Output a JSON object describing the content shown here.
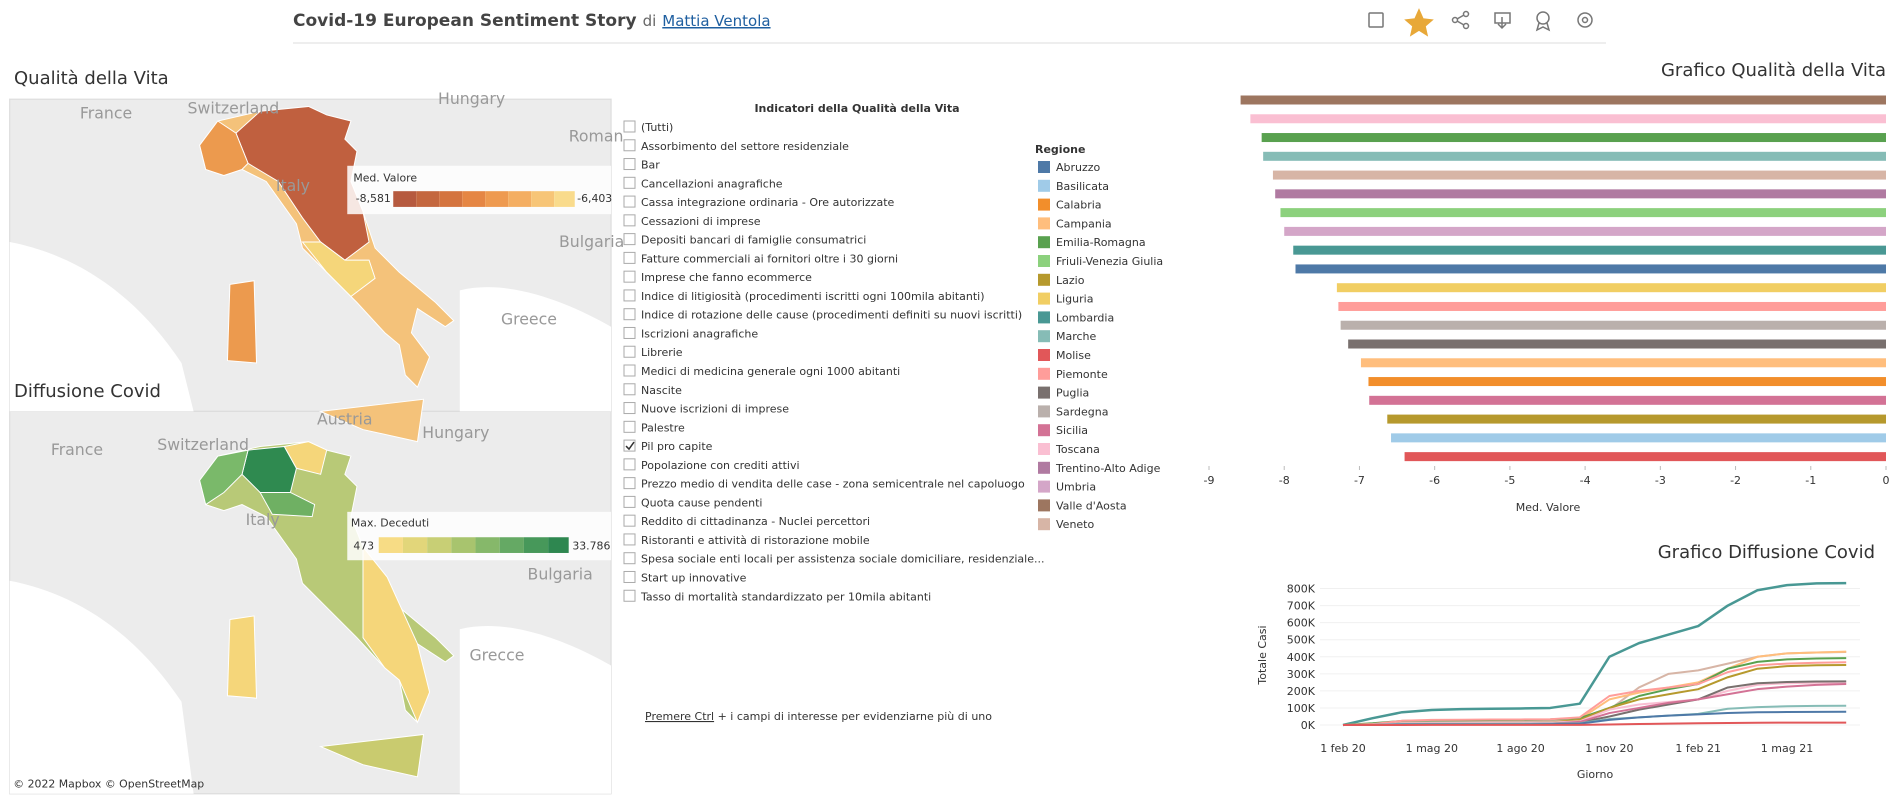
{
  "header": {
    "title": "Covid-19 European Sentiment Story",
    "by": "di",
    "author": "Mattia Ventola"
  },
  "quality_map": {
    "title": "Qualità della Vita",
    "legend_title": "Med. Valore",
    "legend_min": "-8,581",
    "legend_max": "-6,403",
    "places": [
      "France",
      "Switzerland",
      "Hungary",
      "Roman",
      "Italy",
      "Bulgaria",
      "Greece"
    ]
  },
  "covid_map": {
    "title": "Diffusione Covid",
    "legend_title": "Max. Deceduti",
    "legend_min": "473",
    "legend_max": "33.786",
    "places": [
      "France",
      "Switzerland",
      "Austria",
      "Hungary",
      "Italy",
      "Bulgaria",
      "Grecce"
    ]
  },
  "map_credit": "© 2022 Mapbox © OpenStreetMap",
  "filter": {
    "title": "Indicatori della Qualità della Vita",
    "items": [
      {
        "label": "(Tutti)",
        "checked": false
      },
      {
        "label": "Assorbimento del settore residenziale",
        "checked": false
      },
      {
        "label": "Bar",
        "checked": false
      },
      {
        "label": "Cancellazioni anagrafiche",
        "checked": false
      },
      {
        "label": "Cassa integrazione ordinaria - Ore autorizzate",
        "checked": false
      },
      {
        "label": "Cessazioni di imprese",
        "checked": false
      },
      {
        "label": "Depositi bancari di famiglie consumatrici",
        "checked": false
      },
      {
        "label": "Fatture commerciali ai fornitori oltre i 30 giorni",
        "checked": false
      },
      {
        "label": "Imprese che fanno ecommerce",
        "checked": false
      },
      {
        "label": "Indice di litigiosità (procedimenti iscritti ogni 100mila abitanti)",
        "checked": false
      },
      {
        "label": "Indice di rotazione delle cause (procedimenti definiti su nuovi iscritti)",
        "checked": false
      },
      {
        "label": "Iscrizioni anagrafiche",
        "checked": false
      },
      {
        "label": "Librerie",
        "checked": false
      },
      {
        "label": "Medici di medicina generale ogni 1000 abitanti",
        "checked": false
      },
      {
        "label": "Nascite",
        "checked": false
      },
      {
        "label": "Nuove iscrizioni di imprese",
        "checked": false
      },
      {
        "label": "Palestre",
        "checked": false
      },
      {
        "label": "Pil pro capite",
        "checked": true
      },
      {
        "label": "Popolazione con crediti attivi",
        "checked": false
      },
      {
        "label": "Prezzo medio di vendita delle case - zona semicentrale nel capoluogo",
        "checked": false
      },
      {
        "label": "Quota cause pendenti",
        "checked": false
      },
      {
        "label": "Reddito di cittadinanza - Nuclei percettori",
        "checked": false
      },
      {
        "label": "Ristoranti e attività di ristorazione mobile",
        "checked": false
      },
      {
        "label": "Spesa sociale enti locali per assistenza sociale domiciliare, residenziale...",
        "checked": false
      },
      {
        "label": "Start up innovative",
        "checked": false
      },
      {
        "label": "Tasso di mortalità standardizzato per 10mila abitanti",
        "checked": false
      }
    ],
    "hint_link": "Premere Ctrl",
    "hint_text": " + i campi di interesse per evidenziarne più di uno"
  },
  "region_legend": {
    "title": "Regione",
    "items": [
      {
        "name": "Abruzzo",
        "color": "#4e79a7"
      },
      {
        "name": "Basilicata",
        "color": "#a0cbe8"
      },
      {
        "name": "Calabria",
        "color": "#f28e2b"
      },
      {
        "name": "Campania",
        "color": "#ffbe7d"
      },
      {
        "name": "Emilia-Romagna",
        "color": "#59a14f"
      },
      {
        "name": "Friuli-Venezia Giulia",
        "color": "#8cd17d"
      },
      {
        "name": "Lazio",
        "color": "#b6992d"
      },
      {
        "name": "Liguria",
        "color": "#f1ce63"
      },
      {
        "name": "Lombardia",
        "color": "#499894"
      },
      {
        "name": "Marche",
        "color": "#86bcb6"
      },
      {
        "name": "Molise",
        "color": "#e15759"
      },
      {
        "name": "Piemonte",
        "color": "#ff9d9a"
      },
      {
        "name": "Puglia",
        "color": "#79706e"
      },
      {
        "name": "Sardegna",
        "color": "#bab0ac"
      },
      {
        "name": "Sicilia",
        "color": "#d37295"
      },
      {
        "name": "Toscana",
        "color": "#fabfd2"
      },
      {
        "name": "Trentino-Alto Adige",
        "color": "#b07aa1"
      },
      {
        "name": "Umbria",
        "color": "#d4a6c8"
      },
      {
        "name": "Valle d'Aosta",
        "color": "#9d7660"
      },
      {
        "name": "Veneto",
        "color": "#d7b5a6"
      }
    ]
  },
  "chart_data": [
    {
      "type": "bar",
      "orientation": "horizontal",
      "title": "Grafico Qualità della Vita",
      "x_label": "Med. Valore",
      "values": [
        -8.58,
        -8.45,
        -8.3,
        -8.28,
        -8.15,
        -8.12,
        -8.05,
        -8.0,
        -7.88,
        -7.85,
        -7.3,
        -7.28,
        -7.25,
        -7.15,
        -6.98,
        -6.88,
        -6.87,
        -6.63,
        -6.58,
        -6.4
      ],
      "colors": [
        "#9d7660",
        "#fabfd2",
        "#59a14f",
        "#86bcb6",
        "#d7b5a6",
        "#b07aa1",
        "#8cd17d",
        "#d4a6c8",
        "#499894",
        "#4e79a7",
        "#f1ce63",
        "#ff9d9a",
        "#bab0ac",
        "#79706e",
        "#ffbe7d",
        "#f28e2b",
        "#d37295",
        "#b6992d",
        "#a0cbe8",
        "#e15759"
      ],
      "xlim": [
        -9,
        0
      ],
      "xticks": [
        -9,
        -8,
        -7,
        -6,
        -5,
        -4,
        -3,
        -2,
        -1,
        0
      ]
    },
    {
      "type": "line",
      "title": "Grafico Diffusione Covid",
      "x_label": "Giorno",
      "y_label": "Totale Casi",
      "categories": [
        "1 feb 20",
        null,
        null,
        "1 mag 20",
        null,
        null,
        "1 ago 20",
        null,
        null,
        "1 nov 20",
        null,
        null,
        "1 feb 21",
        null,
        null,
        "1 mag 21",
        null,
        null
      ],
      "series": [
        {
          "color": "#499894",
          "values": [
            0,
            40000,
            75000,
            88000,
            93000,
            95000,
            97000,
            100000,
            125000,
            400000,
            480000,
            530000,
            580000,
            700000,
            790000,
            820000,
            830000,
            832000
          ]
        },
        {
          "color": "#d7b5a6",
          "values": [
            0,
            5000,
            17000,
            19000,
            19500,
            20000,
            21000,
            24000,
            30000,
            90000,
            220000,
            300000,
            320000,
            360000,
            400000,
            420000,
            425000,
            428000
          ]
        },
        {
          "color": "#ffbe7d",
          "values": [
            0,
            1000,
            4000,
            4500,
            4700,
            4800,
            5500,
            10000,
            35000,
            150000,
            190000,
            220000,
            250000,
            330000,
            400000,
            420000,
            425000,
            430000
          ]
        },
        {
          "color": "#59a14f",
          "values": [
            0,
            10000,
            24000,
            27000,
            28000,
            29000,
            30000,
            33000,
            40000,
            100000,
            170000,
            210000,
            240000,
            330000,
            370000,
            385000,
            390000,
            392000
          ]
        },
        {
          "color": "#ff9d9a",
          "values": [
            0,
            5000,
            25000,
            30000,
            31000,
            32000,
            32500,
            34000,
            45000,
            170000,
            200000,
            220000,
            240000,
            310000,
            350000,
            360000,
            365000,
            368000
          ]
        },
        {
          "color": "#b6992d",
          "values": [
            0,
            500,
            5000,
            7500,
            8000,
            8500,
            10000,
            15000,
            30000,
            100000,
            150000,
            180000,
            210000,
            280000,
            330000,
            345000,
            350000,
            352000
          ]
        },
        {
          "color": "#fabfd2",
          "values": [
            0,
            1000,
            8000,
            10000,
            10300,
            10500,
            11000,
            14000,
            22000,
            90000,
            120000,
            135000,
            150000,
            200000,
            235000,
            245000,
            248000,
            250000
          ]
        },
        {
          "color": "#79706e",
          "values": [
            0,
            200,
            4000,
            4400,
            4500,
            4600,
            5000,
            8000,
            15000,
            50000,
            90000,
            120000,
            150000,
            220000,
            245000,
            252000,
            255000,
            256000
          ]
        },
        {
          "color": "#d37295",
          "values": [
            0,
            200,
            3000,
            3400,
            3500,
            3600,
            4500,
            8000,
            18000,
            70000,
            100000,
            130000,
            150000,
            180000,
            210000,
            225000,
            235000,
            240000
          ]
        },
        {
          "color": "#86bcb6",
          "values": [
            0,
            1000,
            6000,
            6700,
            6800,
            6900,
            7000,
            8000,
            10000,
            35000,
            45000,
            55000,
            65000,
            95000,
            105000,
            110000,
            112000,
            113000
          ]
        },
        {
          "color": "#4e79a7",
          "values": [
            0,
            200,
            3000,
            3300,
            3400,
            3500,
            3800,
            5000,
            8000,
            30000,
            45000,
            55000,
            62000,
            70000,
            75000,
            76000,
            77000,
            77500
          ]
        },
        {
          "color": "#e15759",
          "values": [
            0,
            0,
            300,
            400,
            450,
            450,
            500,
            600,
            900,
            3000,
            6000,
            8000,
            10000,
            12000,
            13500,
            13800,
            13900,
            14000
          ]
        }
      ],
      "ylim": [
        0,
        850000
      ],
      "yticks": [
        {
          "value": 0,
          "label": "0K"
        },
        {
          "value": 100000,
          "label": "100K"
        },
        {
          "value": 200000,
          "label": "200K"
        },
        {
          "value": 300000,
          "label": "300K"
        },
        {
          "value": 400000,
          "label": "400K"
        },
        {
          "value": 500000,
          "label": "500K"
        },
        {
          "value": 600000,
          "label": "600K"
        },
        {
          "value": 700000,
          "label": "700K"
        },
        {
          "value": 800000,
          "label": "800K"
        }
      ]
    }
  ]
}
